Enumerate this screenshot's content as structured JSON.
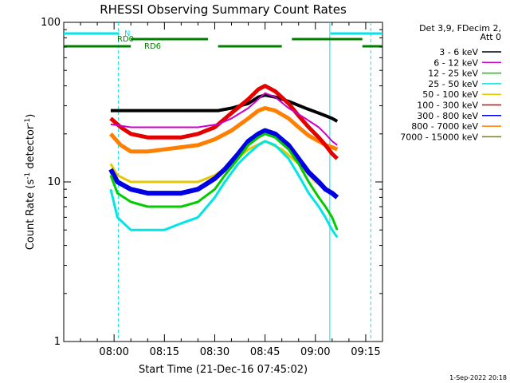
{
  "chart_data": {
    "type": "line",
    "title": "RHESSI Observing Summary Count Rates",
    "xlabel": "Start Time (21-Dec-16 07:45:02)",
    "ylabel_main": "Count Rate (s",
    "ylabel_sup1": "-1",
    "ylabel_mid": " detector",
    "ylabel_sup2": "-1",
    "ylabel_end": ")",
    "y_scale": "log",
    "ylim": [
      1,
      100
    ],
    "xlim_minutes": [
      0,
      95
    ],
    "x_ticks": [
      {
        "label": "08:00",
        "minute": 15
      },
      {
        "label": "08:15",
        "minute": 30
      },
      {
        "label": "08:30",
        "minute": 45
      },
      {
        "label": "08:45",
        "minute": 60
      },
      {
        "label": "09:00",
        "minute": 75
      },
      {
        "label": "09:15",
        "minute": 90
      }
    ],
    "y_ticks": [
      {
        "label": "1",
        "value": 1
      },
      {
        "label": "10",
        "value": 10
      },
      {
        "label": "100",
        "value": 100
      }
    ],
    "legend_header": [
      "Det 3,9, FDecim 2,",
      "Att 0"
    ],
    "legend_position": "right",
    "series": [
      {
        "name": "3 - 6 keV",
        "color": "#000000",
        "x": [
          14,
          20,
          30,
          40,
          46,
          50,
          55,
          58,
          60,
          63,
          67,
          72,
          76,
          78,
          80,
          81.5
        ],
        "y": [
          28,
          28,
          28,
          28,
          28,
          29,
          31,
          34,
          35,
          34,
          32,
          29,
          27,
          26,
          25,
          24
        ]
      },
      {
        "name": "6 - 12 keV",
        "color": "#cc00cc",
        "x": [
          14,
          20,
          30,
          40,
          46,
          50,
          55,
          58,
          60,
          63,
          67,
          72,
          76,
          78,
          80,
          81.5
        ],
        "y": [
          23,
          22,
          22,
          22,
          23,
          25,
          29,
          33,
          36,
          34,
          29,
          25,
          22,
          20,
          18,
          17
        ]
      },
      {
        "name": "12 - 25 keV",
        "color": "#00cc00",
        "x": [
          14,
          16,
          20,
          25,
          30,
          35,
          40,
          45,
          48,
          52,
          55,
          58,
          60,
          63,
          67,
          70,
          73,
          76,
          78,
          80,
          81.5
        ],
        "y": [
          11,
          8.5,
          7.5,
          7,
          7,
          7,
          7.5,
          9,
          11,
          14,
          17,
          19,
          20,
          19,
          16,
          13,
          10,
          8,
          7,
          6,
          5
        ]
      },
      {
        "name": "25 - 50 keV",
        "color": "#00e5e5",
        "x": [
          14,
          16,
          20,
          25,
          30,
          35,
          40,
          45,
          48,
          52,
          55,
          58,
          60,
          63,
          67,
          70,
          73,
          76,
          78,
          80,
          81.5
        ],
        "y": [
          9,
          6,
          5,
          5,
          5,
          5.5,
          6,
          8,
          10,
          13,
          15,
          17,
          18,
          17,
          14,
          11,
          8.5,
          7,
          6,
          5,
          4.5
        ]
      },
      {
        "name": "50 - 100 keV",
        "color": "#e5c800",
        "x": [
          14,
          16,
          20,
          25,
          30,
          35,
          40,
          45,
          50,
          55,
          60,
          65,
          70,
          75,
          78,
          80,
          81.5
        ],
        "y": [
          13,
          11,
          10,
          10,
          10,
          10,
          10,
          11,
          13,
          16,
          18,
          16,
          13,
          10,
          9,
          8.5,
          8
        ]
      },
      {
        "name": "100 - 300 keV",
        "color": "#e50000",
        "x": [
          14,
          17,
          20,
          25,
          30,
          35,
          40,
          45,
          50,
          55,
          58,
          60,
          63,
          67,
          70,
          73,
          76,
          78,
          80,
          81.5
        ],
        "y": [
          25,
          22,
          20,
          19,
          19,
          19,
          20,
          22,
          27,
          33,
          38,
          40,
          37,
          31,
          26,
          22,
          19,
          17,
          15,
          14
        ]
      },
      {
        "name": "300 - 800 keV",
        "color": "#0000e5",
        "x": [
          14,
          16,
          20,
          25,
          30,
          35,
          40,
          45,
          48,
          52,
          55,
          58,
          60,
          63,
          67,
          70,
          73,
          76,
          78,
          80,
          81.5
        ],
        "y": [
          12,
          10,
          9,
          8.5,
          8.5,
          8.5,
          9,
          10.5,
          12,
          15,
          18,
          20,
          21,
          20,
          17,
          14,
          11.5,
          10,
          9,
          8.5,
          8
        ]
      },
      {
        "name": "800 - 7000 keV",
        "color": "#ff7f00",
        "x": [
          14,
          17,
          20,
          25,
          30,
          35,
          40,
          45,
          50,
          55,
          58,
          60,
          63,
          67,
          70,
          73,
          76,
          78,
          80,
          81.5
        ],
        "y": [
          20,
          17,
          15.5,
          15.5,
          16,
          16.5,
          17,
          18.5,
          21,
          25,
          28,
          29,
          28,
          25,
          22,
          19.5,
          18,
          17,
          16.5,
          16
        ]
      },
      {
        "name": "7000 - 15000 keV",
        "color": "#7f7f00",
        "x": [],
        "y": []
      }
    ],
    "state_bars": [
      {
        "label": "N",
        "color": "#00e5e5",
        "level": 1,
        "segments": [
          [
            0,
            16.5
          ],
          [
            79.5,
            95
          ]
        ]
      },
      {
        "label": "RD0",
        "color": "#007f00",
        "level": 2,
        "segments": [
          [
            20,
            43
          ],
          [
            68,
            89
          ]
        ]
      },
      {
        "label": "RD6",
        "color": "#007f00",
        "level": 3,
        "segments": [
          [
            0,
            20
          ],
          [
            46,
            65
          ],
          [
            89,
            95
          ]
        ]
      }
    ],
    "vertical_markers": [
      {
        "minute": 16.3,
        "style": "dashed",
        "color": "#00e5e5"
      },
      {
        "minute": 79.3,
        "style": "solid",
        "color": "#00e5e5"
      },
      {
        "minute": 91.5,
        "style": "dashed",
        "color": "#00e5e5"
      }
    ]
  },
  "footer_stamp": "1-Sep-2022 20:18"
}
